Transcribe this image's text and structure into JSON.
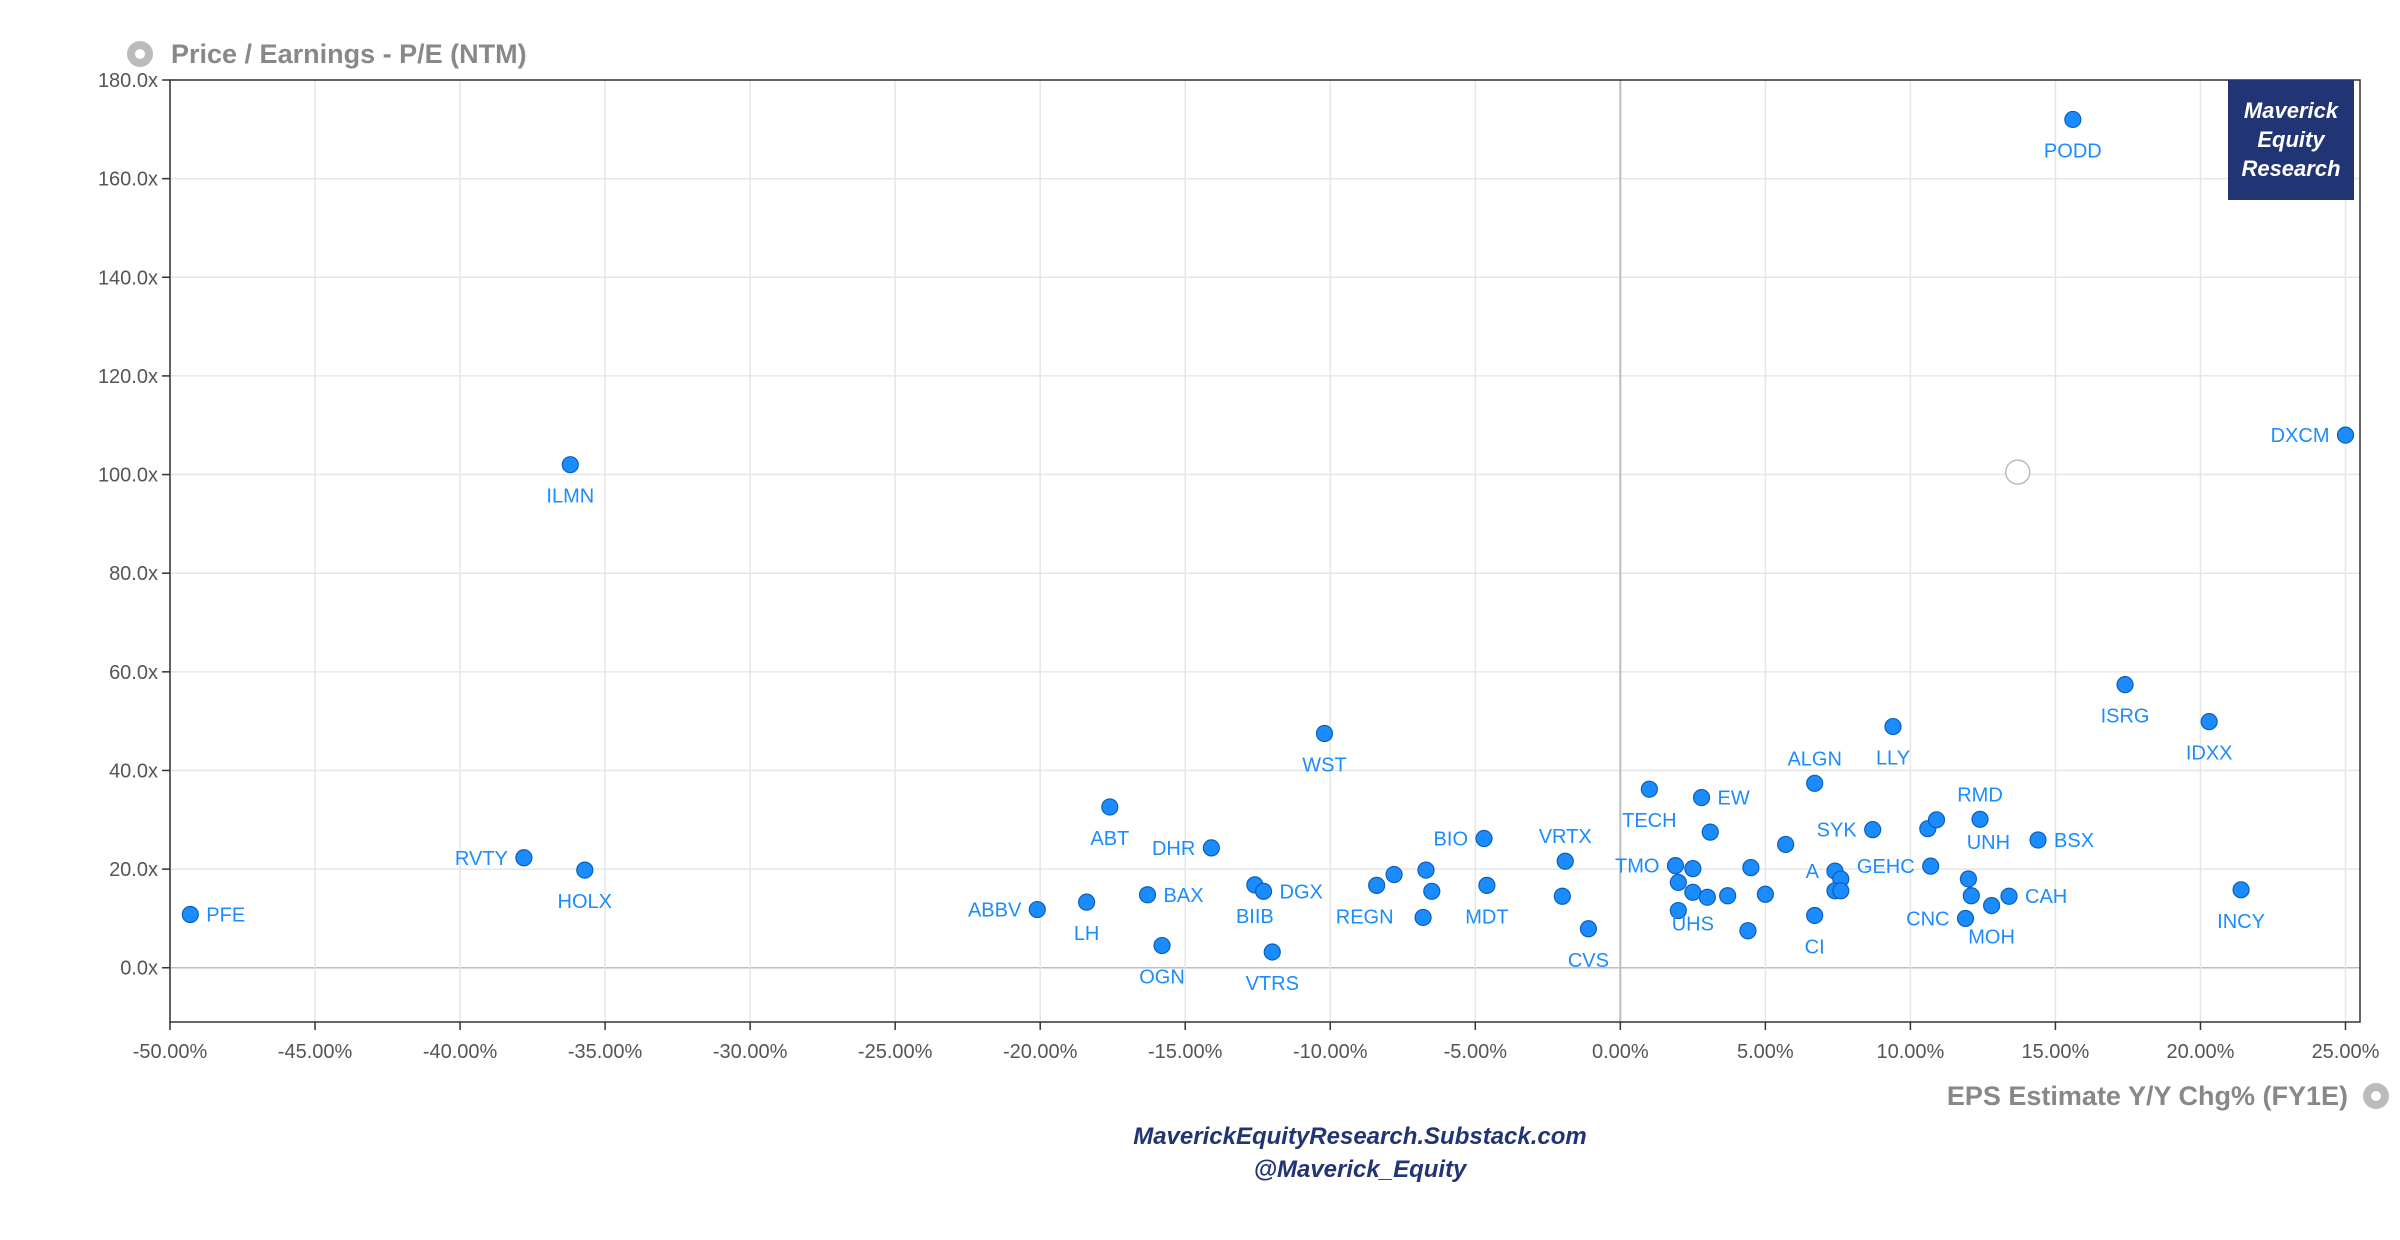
{
  "chart_data": {
    "type": "scatter",
    "title": "Price / Earnings - P/E (NTM)",
    "xlabel": "EPS Estimate Y/Y Chg% (FY1E)",
    "ylabel": "Price / Earnings - P/E (NTM)",
    "xlim": [
      -0.5,
      0.255
    ],
    "ylim": [
      -11,
      180
    ],
    "x_ticks": [
      -0.5,
      -0.45,
      -0.4,
      -0.35,
      -0.3,
      -0.25,
      -0.2,
      -0.15,
      -0.1,
      -0.05,
      0.0,
      0.05,
      0.1,
      0.15,
      0.2,
      0.25
    ],
    "x_tick_labels": [
      "-50.00%",
      "-45.00%",
      "-40.00%",
      "-35.00%",
      "-30.00%",
      "-25.00%",
      "-20.00%",
      "-15.00%",
      "-10.00%",
      "-5.00%",
      "0.00%",
      "5.00%",
      "10.00%",
      "15.00%",
      "20.00%",
      "25.00%"
    ],
    "y_ticks": [
      0,
      20,
      40,
      60,
      80,
      100,
      120,
      140,
      160,
      180
    ],
    "y_tick_labels": [
      "0.0x",
      "20.0x",
      "40.0x",
      "60.0x",
      "80.0x",
      "100.0x",
      "120.0x",
      "140.0x",
      "160.0x",
      "180.0x"
    ],
    "grid": true,
    "point_color": "#1a8cff",
    "points": [
      {
        "label": "PFE",
        "x": -0.493,
        "y": 10.8,
        "pos": "right"
      },
      {
        "label": "RVTY",
        "x": -0.378,
        "y": 22.3,
        "pos": "left"
      },
      {
        "label": "HOLX",
        "x": -0.357,
        "y": 19.8,
        "pos": "below"
      },
      {
        "label": "ILMN",
        "x": -0.362,
        "y": 102.0,
        "pos": "below"
      },
      {
        "label": "ABBV",
        "x": -0.201,
        "y": 11.8,
        "pos": "left"
      },
      {
        "label": "LH",
        "x": -0.184,
        "y": 13.3,
        "pos": "below"
      },
      {
        "label": "ABT",
        "x": -0.176,
        "y": 32.6,
        "pos": "below"
      },
      {
        "label": "BAX",
        "x": -0.163,
        "y": 14.8,
        "pos": "right"
      },
      {
        "label": "OGN",
        "x": -0.158,
        "y": 4.5,
        "pos": "below"
      },
      {
        "label": "DHR",
        "x": -0.141,
        "y": 24.3,
        "pos": "left"
      },
      {
        "label": "BIIB",
        "x": -0.126,
        "y": 16.8,
        "pos": "below"
      },
      {
        "label": "DGX",
        "x": -0.123,
        "y": 15.5,
        "pos": "right"
      },
      {
        "label": "VTRS",
        "x": -0.12,
        "y": 3.2,
        "pos": "below"
      },
      {
        "label": "WST",
        "x": -0.102,
        "y": 47.5,
        "pos": "below"
      },
      {
        "label": "REGN",
        "x": -0.084,
        "y": 16.7,
        "pos": "belowleft"
      },
      {
        "label": "",
        "x": -0.078,
        "y": 18.9,
        "pos": "none"
      },
      {
        "label": "",
        "x": -0.067,
        "y": 19.8,
        "pos": "none"
      },
      {
        "label": "",
        "x": -0.068,
        "y": 10.2,
        "pos": "none"
      },
      {
        "label": "",
        "x": -0.065,
        "y": 15.5,
        "pos": "none"
      },
      {
        "label": "BIO",
        "x": -0.047,
        "y": 26.2,
        "pos": "left"
      },
      {
        "label": "MDT",
        "x": -0.046,
        "y": 16.7,
        "pos": "below"
      },
      {
        "label": "VRTX",
        "x": -0.019,
        "y": 21.6,
        "pos": "above"
      },
      {
        "label": "",
        "x": -0.02,
        "y": 14.5,
        "pos": "none"
      },
      {
        "label": "CVS",
        "x": -0.011,
        "y": 7.9,
        "pos": "below"
      },
      {
        "label": "TECH",
        "x": 0.01,
        "y": 36.2,
        "pos": "below"
      },
      {
        "label": "TMO",
        "x": 0.019,
        "y": 20.7,
        "pos": "left"
      },
      {
        "label": "",
        "x": 0.02,
        "y": 17.3,
        "pos": "none"
      },
      {
        "label": "",
        "x": 0.02,
        "y": 11.6,
        "pos": "none"
      },
      {
        "label": "EW",
        "x": 0.028,
        "y": 34.5,
        "pos": "right"
      },
      {
        "label": "",
        "x": 0.025,
        "y": 20.1,
        "pos": "none"
      },
      {
        "label": "",
        "x": 0.031,
        "y": 27.5,
        "pos": "none"
      },
      {
        "label": "UHS",
        "x": 0.025,
        "y": 15.3,
        "pos": "below"
      },
      {
        "label": "",
        "x": 0.03,
        "y": 14.3,
        "pos": "none"
      },
      {
        "label": "",
        "x": 0.037,
        "y": 14.6,
        "pos": "none"
      },
      {
        "label": "",
        "x": 0.045,
        "y": 20.3,
        "pos": "none"
      },
      {
        "label": "",
        "x": 0.044,
        "y": 7.5,
        "pos": "none"
      },
      {
        "label": "",
        "x": 0.05,
        "y": 14.9,
        "pos": "none"
      },
      {
        "label": "",
        "x": 0.057,
        "y": 25.0,
        "pos": "none"
      },
      {
        "label": "ALGN",
        "x": 0.067,
        "y": 37.4,
        "pos": "above"
      },
      {
        "label": "A",
        "x": 0.074,
        "y": 19.6,
        "pos": "left"
      },
      {
        "label": "",
        "x": 0.076,
        "y": 18.0,
        "pos": "none"
      },
      {
        "label": "",
        "x": 0.074,
        "y": 15.6,
        "pos": "none"
      },
      {
        "label": "",
        "x": 0.076,
        "y": 15.6,
        "pos": "none"
      },
      {
        "label": "CI",
        "x": 0.067,
        "y": 10.6,
        "pos": "below"
      },
      {
        "label": "SYK",
        "x": 0.087,
        "y": 28.0,
        "pos": "left"
      },
      {
        "label": "LLY",
        "x": 0.094,
        "y": 48.9,
        "pos": "below"
      },
      {
        "label": "GEHC",
        "x": 0.107,
        "y": 20.6,
        "pos": "left"
      },
      {
        "label": "",
        "x": 0.106,
        "y": 28.2,
        "pos": "none"
      },
      {
        "label": "",
        "x": 0.109,
        "y": 30.0,
        "pos": "none"
      },
      {
        "label": "RMD",
        "x": 0.124,
        "y": 30.1,
        "pos": "above"
      },
      {
        "label": "UNH",
        "x": 0.12,
        "y": 18.0,
        "pos": "aboveright"
      },
      {
        "label": "",
        "x": 0.121,
        "y": 14.6,
        "pos": "none"
      },
      {
        "label": "CNC",
        "x": 0.119,
        "y": 10.0,
        "pos": "left"
      },
      {
        "label": "MOH",
        "x": 0.128,
        "y": 12.6,
        "pos": "below"
      },
      {
        "label": "CAH",
        "x": 0.134,
        "y": 14.5,
        "pos": "right"
      },
      {
        "label": "BSX",
        "x": 0.144,
        "y": 25.9,
        "pos": "right"
      },
      {
        "label": "PODD",
        "x": 0.156,
        "y": 172.0,
        "pos": "below"
      },
      {
        "label": "ISRG",
        "x": 0.174,
        "y": 57.4,
        "pos": "below"
      },
      {
        "label": "IDXX",
        "x": 0.203,
        "y": 49.9,
        "pos": "below"
      },
      {
        "label": "INCY",
        "x": 0.214,
        "y": 15.8,
        "pos": "below"
      },
      {
        "label": "DXCM",
        "x": 0.25,
        "y": 108.0,
        "pos": "left"
      }
    ],
    "hollow_marker": {
      "x": 0.137,
      "y": 100.5
    }
  },
  "logo": {
    "line1": "Maverick",
    "line2": "Equity",
    "line3": "Research"
  },
  "footer": {
    "site": "MaverickEquityResearch.Substack.com",
    "handle": "@Maverick_Equity"
  },
  "icons": {
    "title_icon": "gear-icon",
    "xlabel_icon": "gear-icon"
  }
}
